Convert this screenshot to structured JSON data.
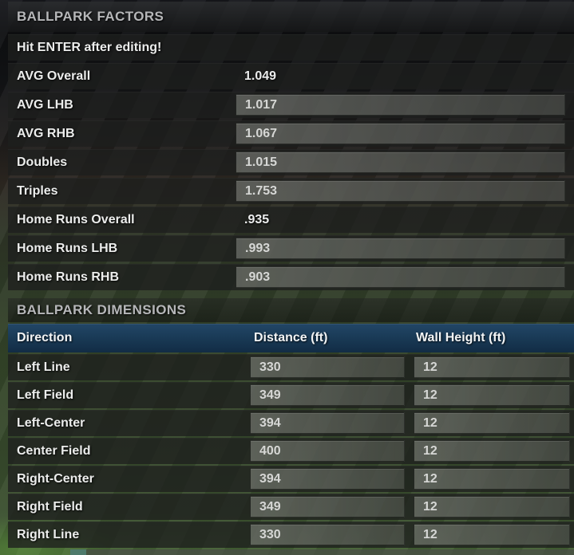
{
  "factors": {
    "title": "BALLPARK FACTORS",
    "notice": "Hit ENTER after editing!",
    "rows": [
      {
        "label": "AVG Overall",
        "value": "1.049",
        "editable": false
      },
      {
        "label": "AVG LHB",
        "value": "1.017",
        "editable": true
      },
      {
        "label": "AVG RHB",
        "value": "1.067",
        "editable": true
      },
      {
        "label": "Doubles",
        "value": "1.015",
        "editable": true
      },
      {
        "label": "Triples",
        "value": "1.753",
        "editable": true
      },
      {
        "label": "Home Runs Overall",
        "value": ".935",
        "editable": false
      },
      {
        "label": "Home Runs LHB",
        "value": ".993",
        "editable": true
      },
      {
        "label": "Home Runs RHB",
        "value": ".903",
        "editable": true
      }
    ]
  },
  "dimensions": {
    "title": "BALLPARK DIMENSIONS",
    "columns": [
      "Direction",
      "Distance (ft)",
      "Wall Height (ft)"
    ],
    "rows": [
      {
        "direction": "Left Line",
        "distance": "330",
        "wall_height": "12"
      },
      {
        "direction": "Left Field",
        "distance": "349",
        "wall_height": "12"
      },
      {
        "direction": "Left-Center",
        "distance": "394",
        "wall_height": "12"
      },
      {
        "direction": "Center Field",
        "distance": "400",
        "wall_height": "12"
      },
      {
        "direction": "Right-Center",
        "distance": "394",
        "wall_height": "12"
      },
      {
        "direction": "Right Field",
        "distance": "349",
        "wall_height": "12"
      },
      {
        "direction": "Right Line",
        "distance": "330",
        "wall_height": "12"
      }
    ]
  },
  "colors": {
    "table_header_blue": "#1a3b57",
    "input_field_gray": "#50534d",
    "label_text": "#ecedec",
    "section_header_text": "#b6b7b9",
    "field_green": "#36482b"
  }
}
